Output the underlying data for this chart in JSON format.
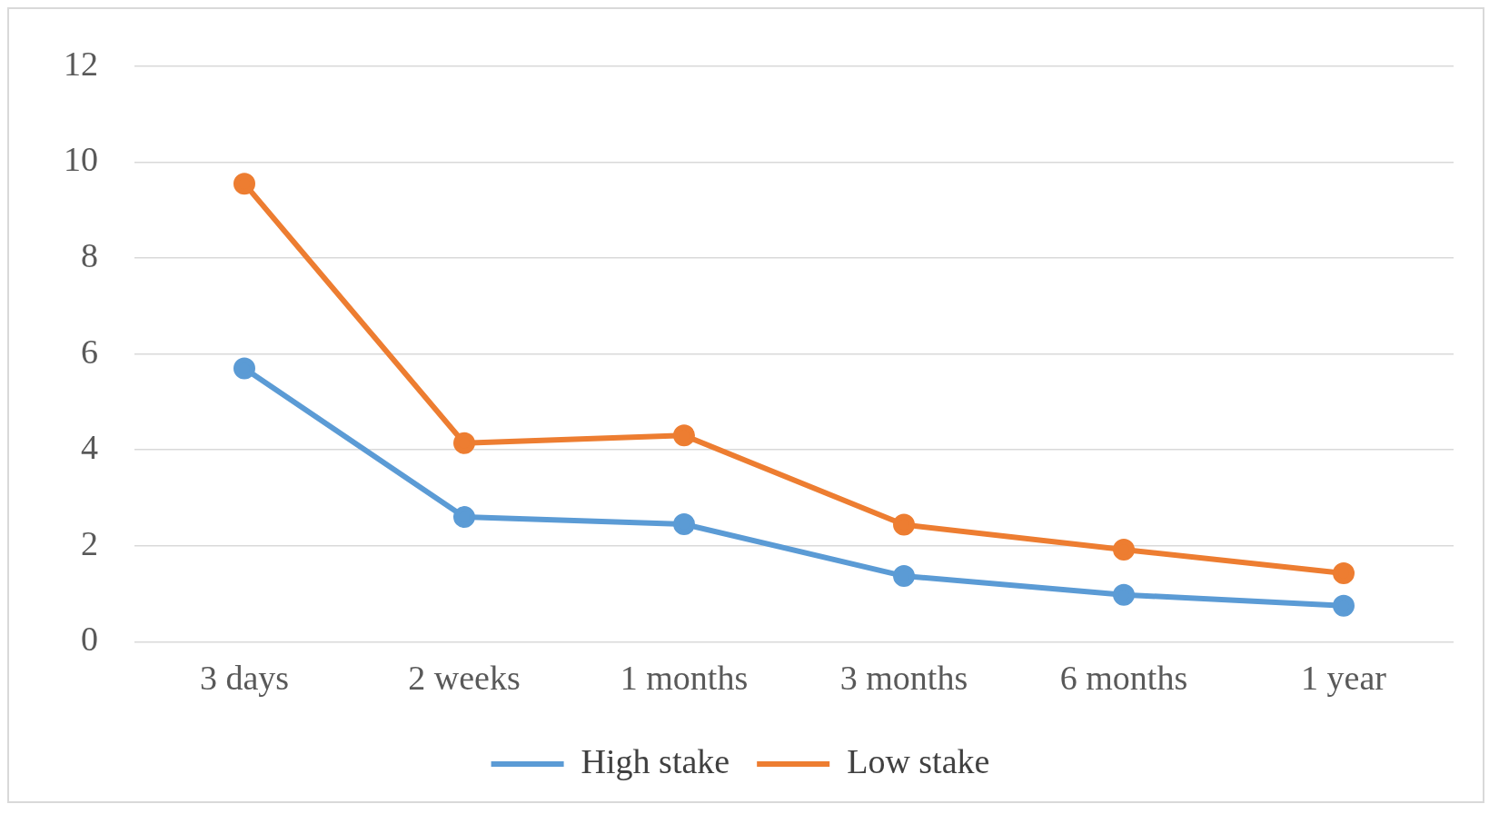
{
  "chart_data": {
    "type": "line",
    "categories": [
      "3 days",
      "2 weeks",
      "1 months",
      "3 months",
      "6 months",
      "1 year"
    ],
    "series": [
      {
        "name": "High stake",
        "color": "#5b9bd5",
        "values": [
          5.7,
          2.6,
          2.45,
          1.37,
          0.98,
          0.75
        ]
      },
      {
        "name": "Low stake",
        "color": "#ed7d31",
        "values": [
          9.55,
          4.14,
          4.3,
          2.44,
          1.92,
          1.43
        ]
      }
    ],
    "ylim": [
      0,
      12
    ],
    "yticks": [
      0,
      2,
      4,
      6,
      8,
      10,
      12
    ],
    "grid": "y",
    "legend": "bottom",
    "marker": "circle",
    "line_style": "solid"
  }
}
